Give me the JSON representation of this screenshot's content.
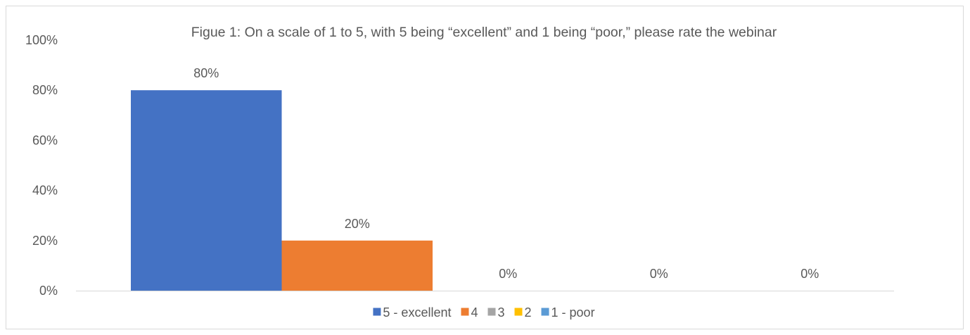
{
  "chart_data": {
    "type": "bar",
    "title": "Figue 1:  On a scale of 1 to 5, with 5 being “excellent” and 1 being “poor,” please rate the webinar",
    "categories": [
      ""
    ],
    "series": [
      {
        "name": "5 - excellent",
        "value": 80,
        "label": "80%",
        "color": "#4472c4"
      },
      {
        "name": "4",
        "value": 20,
        "label": "20%",
        "color": "#ed7d31"
      },
      {
        "name": "3",
        "value": 0,
        "label": "0%",
        "color": "#a5a5a5"
      },
      {
        "name": "2",
        "value": 0,
        "label": "0%",
        "color": "#ffc000"
      },
      {
        "name": "1 - poor",
        "value": 0,
        "label": "0%",
        "color": "#5b9bd5"
      }
    ],
    "ylim": [
      0,
      100
    ],
    "y_ticks": [
      "0%",
      "20%",
      "40%",
      "60%",
      "80%",
      "100%"
    ],
    "xlabel": "",
    "ylabel": "",
    "grid": false,
    "legend_position": "bottom"
  }
}
